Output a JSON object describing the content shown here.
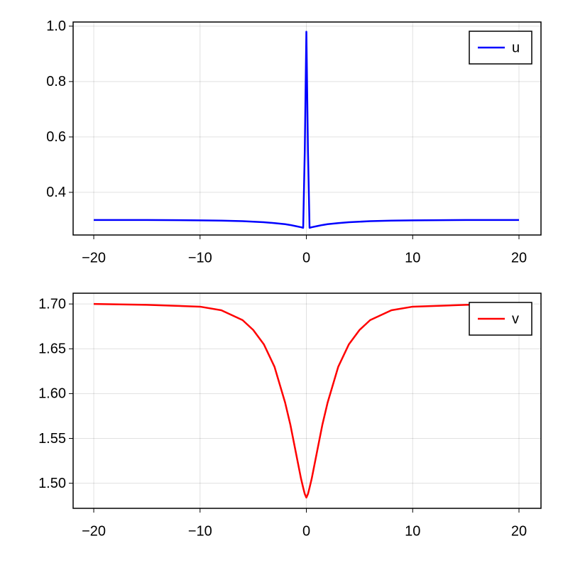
{
  "chart_data": [
    {
      "type": "line",
      "x": [
        -20,
        -15,
        -10,
        -8,
        -6,
        -5,
        -4,
        -3,
        -2,
        -1.5,
        -1,
        -0.5,
        -0.3,
        -0.15,
        0,
        0.15,
        0.3,
        0.5,
        1,
        1.5,
        2,
        3,
        4,
        5,
        6,
        8,
        10,
        15,
        20
      ],
      "series": [
        {
          "name": "u",
          "color": "#0000ff",
          "values": [
            0.3,
            0.3,
            0.299,
            0.298,
            0.296,
            0.294,
            0.292,
            0.289,
            0.285,
            0.282,
            0.278,
            0.274,
            0.272,
            0.55,
            0.98,
            0.55,
            0.272,
            0.274,
            0.278,
            0.282,
            0.285,
            0.289,
            0.292,
            0.294,
            0.296,
            0.298,
            0.299,
            0.3,
            0.3
          ]
        }
      ],
      "xlim": [
        -21.94,
        22.07
      ],
      "xticks": [
        {
          "value": -20,
          "label": "−20"
        },
        {
          "value": -10,
          "label": "−10"
        },
        0,
        10,
        20
      ],
      "ylim": [
        0.246,
        1.015
      ],
      "yticks": [
        0.4,
        0.6,
        0.8,
        {
          "value": 1.0,
          "label": "1.0"
        }
      ],
      "grid": true,
      "legend": "top-right"
    },
    {
      "type": "line",
      "x": [
        -20,
        -15,
        -10,
        -8,
        -6,
        -5,
        -4,
        -3,
        -2,
        -1.5,
        -1,
        -0.5,
        -0.3,
        -0.15,
        0,
        0.15,
        0.3,
        0.5,
        1,
        1.5,
        2,
        3,
        4,
        5,
        6,
        8,
        10,
        15,
        20
      ],
      "series": [
        {
          "name": "v",
          "color": "#ff0000",
          "values": [
            1.7,
            1.699,
            1.697,
            1.693,
            1.682,
            1.671,
            1.655,
            1.63,
            1.59,
            1.565,
            1.535,
            1.505,
            1.495,
            1.488,
            1.484,
            1.488,
            1.495,
            1.505,
            1.535,
            1.565,
            1.59,
            1.63,
            1.655,
            1.671,
            1.682,
            1.693,
            1.697,
            1.699,
            1.7
          ]
        }
      ],
      "xlim": [
        -21.94,
        22.07
      ],
      "xticks": [
        {
          "value": -20,
          "label": "−20"
        },
        {
          "value": -10,
          "label": "−10"
        },
        0,
        10,
        20
      ],
      "ylim": [
        1.472,
        1.712
      ],
      "yticks": [
        {
          "value": 1.5,
          "label": "1.50"
        },
        {
          "value": 1.55,
          "label": "1.55"
        },
        {
          "value": 1.6,
          "label": "1.60"
        },
        {
          "value": 1.65,
          "label": "1.65"
        },
        {
          "value": 1.7,
          "label": "1.70"
        }
      ],
      "grid": true,
      "legend": "top-right"
    }
  ]
}
